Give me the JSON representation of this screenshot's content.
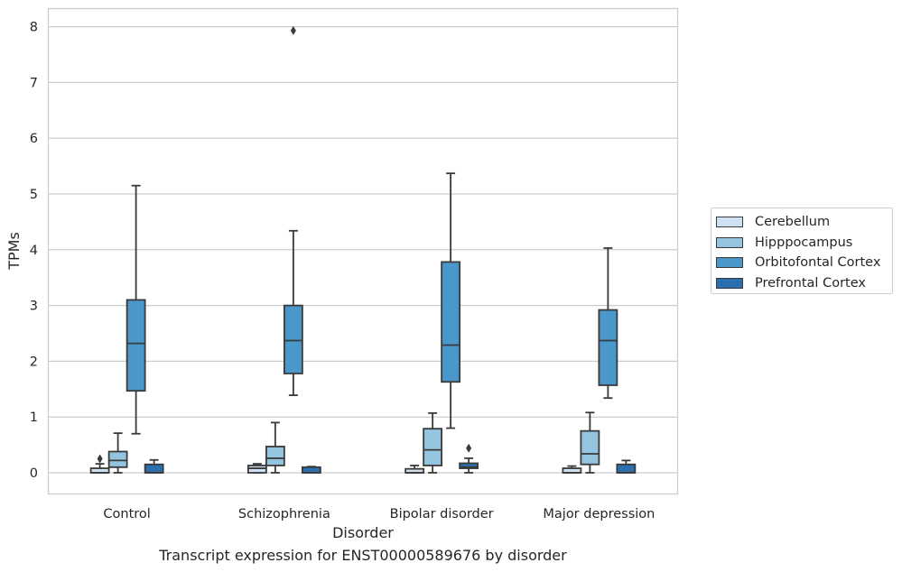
{
  "chart_data": {
    "type": "box",
    "title": "Transcript expression for ENST00000589676 by disorder",
    "xlabel": "Disorder",
    "ylabel": "TPMs",
    "ylim": [
      -0.38,
      8.35
    ],
    "yticks": [
      0,
      1,
      2,
      3,
      4,
      5,
      6,
      7,
      8
    ],
    "grid": "horizontal",
    "legend_position": "right",
    "categories": [
      "Control",
      "Schizophrenia",
      "Bipolar disorder",
      "Major depression"
    ],
    "series": [
      {
        "name": "Cerebellum",
        "color": "#d0e1f2",
        "boxes": [
          {
            "whislo": 0.0,
            "q1": 0.0,
            "med": 0.0,
            "q3": 0.08,
            "whishi": 0.16,
            "fliers": [
              0.25
            ]
          },
          {
            "whislo": 0.0,
            "q1": 0.0,
            "med": 0.08,
            "q3": 0.13,
            "whishi": 0.16,
            "fliers": []
          },
          {
            "whislo": 0.0,
            "q1": 0.0,
            "med": 0.0,
            "q3": 0.07,
            "whishi": 0.13,
            "fliers": []
          },
          {
            "whislo": 0.0,
            "q1": 0.0,
            "med": 0.0,
            "q3": 0.08,
            "whishi": 0.12,
            "fliers": []
          }
        ]
      },
      {
        "name": "Hipppocampus",
        "color": "#94c4df",
        "boxes": [
          {
            "whislo": 0.0,
            "q1": 0.1,
            "med": 0.22,
            "q3": 0.38,
            "whishi": 0.71,
            "fliers": []
          },
          {
            "whislo": 0.0,
            "q1": 0.13,
            "med": 0.26,
            "q3": 0.47,
            "whishi": 0.9,
            "fliers": []
          },
          {
            "whislo": 0.0,
            "q1": 0.13,
            "med": 0.41,
            "q3": 0.79,
            "whishi": 1.07,
            "fliers": []
          },
          {
            "whislo": 0.0,
            "q1": 0.15,
            "med": 0.34,
            "q3": 0.75,
            "whishi": 1.08,
            "fliers": []
          }
        ]
      },
      {
        "name": "Orbitofontal Cortex",
        "color": "#4a98c9",
        "boxes": [
          {
            "whislo": 0.7,
            "q1": 1.47,
            "med": 2.32,
            "q3": 3.1,
            "whishi": 5.15,
            "fliers": []
          },
          {
            "whislo": 1.39,
            "q1": 1.78,
            "med": 2.37,
            "q3": 3.0,
            "whishi": 4.34,
            "fliers": [
              7.93
            ]
          },
          {
            "whislo": 0.8,
            "q1": 1.63,
            "med": 2.29,
            "q3": 3.78,
            "whishi": 5.37,
            "fliers": []
          },
          {
            "whislo": 1.34,
            "q1": 1.57,
            "med": 2.37,
            "q3": 2.92,
            "whishi": 4.03,
            "fliers": []
          }
        ]
      },
      {
        "name": "Prefrontal Cortex",
        "color": "#2c6fae",
        "boxes": [
          {
            "whislo": 0.0,
            "q1": 0.0,
            "med": 0.0,
            "q3": 0.15,
            "whishi": 0.23,
            "fliers": []
          },
          {
            "whislo": 0.0,
            "q1": 0.0,
            "med": 0.0,
            "q3": 0.1,
            "whishi": 0.11,
            "fliers": []
          },
          {
            "whislo": 0.0,
            "q1": 0.08,
            "med": 0.1,
            "q3": 0.17,
            "whishi": 0.26,
            "fliers": [
              0.44
            ]
          },
          {
            "whislo": 0.0,
            "q1": 0.0,
            "med": 0.0,
            "q3": 0.15,
            "whishi": 0.22,
            "fliers": []
          }
        ]
      }
    ]
  }
}
